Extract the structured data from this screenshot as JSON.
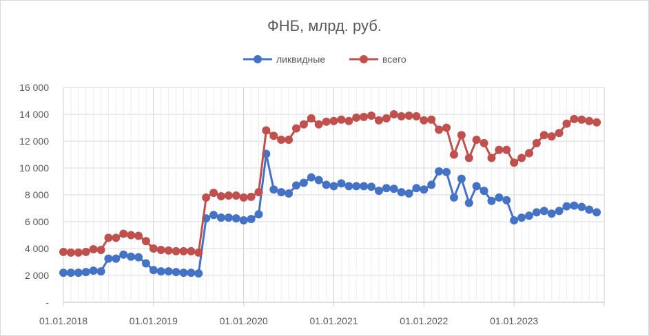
{
  "chart_data": {
    "type": "line",
    "title": "ФНБ, млрд. руб.",
    "xlabel": "",
    "ylabel": "",
    "ylim": [
      0,
      16000
    ],
    "yticks": [
      0,
      2000,
      4000,
      6000,
      8000,
      10000,
      12000,
      14000,
      16000
    ],
    "ytick_labels": [
      "-",
      "2 000",
      "4 000",
      "6 000",
      "8 000",
      "10 000",
      "12 000",
      "14 000",
      "16 000"
    ],
    "xlim": [
      "2018-01-01",
      "2023-12-01"
    ],
    "xtick_labels": [
      "01.01.2018",
      "01.01.2019",
      "01.01.2020",
      "01.01.2021",
      "01.01.2022",
      "01.01.2023"
    ],
    "grid": true,
    "legend": "top-center",
    "x": [
      "2018-01-01",
      "2018-02-01",
      "2018-03-01",
      "2018-04-01",
      "2018-05-01",
      "2018-06-01",
      "2018-07-01",
      "2018-08-01",
      "2018-09-01",
      "2018-10-01",
      "2018-11-01",
      "2018-12-01",
      "2019-01-01",
      "2019-02-01",
      "2019-03-01",
      "2019-04-01",
      "2019-05-01",
      "2019-06-01",
      "2019-07-01",
      "2019-08-01",
      "2019-09-01",
      "2019-10-01",
      "2019-11-01",
      "2019-12-01",
      "2020-01-01",
      "2020-02-01",
      "2020-03-01",
      "2020-04-01",
      "2020-05-01",
      "2020-06-01",
      "2020-07-01",
      "2020-08-01",
      "2020-09-01",
      "2020-10-01",
      "2020-11-01",
      "2020-12-01",
      "2021-01-01",
      "2021-02-01",
      "2021-03-01",
      "2021-04-01",
      "2021-05-01",
      "2021-06-01",
      "2021-07-01",
      "2021-08-01",
      "2021-09-01",
      "2021-10-01",
      "2021-11-01",
      "2021-12-01",
      "2022-01-01",
      "2022-02-01",
      "2022-03-01",
      "2022-04-01",
      "2022-05-01",
      "2022-06-01",
      "2022-07-01",
      "2022-08-01",
      "2022-09-01",
      "2022-10-01",
      "2022-11-01",
      "2022-12-01",
      "2023-01-01",
      "2023-02-01",
      "2023-03-01",
      "2023-04-01",
      "2023-05-01",
      "2023-06-01",
      "2023-07-01",
      "2023-08-01",
      "2023-09-01",
      "2023-10-01",
      "2023-11-01",
      "2023-12-01"
    ],
    "series": [
      {
        "name": "ликвидные",
        "color": "#4472c4",
        "values": [
          2200,
          2200,
          2200,
          2250,
          2350,
          2300,
          3250,
          3250,
          3550,
          3400,
          3350,
          2900,
          2400,
          2300,
          2300,
          2250,
          2200,
          2200,
          2150,
          6250,
          6500,
          6300,
          6300,
          6250,
          6100,
          6200,
          6550,
          11050,
          8400,
          8200,
          8100,
          8700,
          8900,
          9300,
          9100,
          8750,
          8650,
          8850,
          8650,
          8650,
          8650,
          8600,
          8300,
          8500,
          8450,
          8200,
          8100,
          8500,
          8400,
          8750,
          9750,
          9700,
          7800,
          9200,
          7400,
          8650,
          8300,
          7550,
          7800,
          7600,
          6100,
          6300,
          6450,
          6700,
          6800,
          6600,
          6800,
          7150,
          7200,
          7100,
          6900,
          6700
        ]
      },
      {
        "name": "всего",
        "color": "#c0504d",
        "values": [
          3750,
          3700,
          3700,
          3750,
          3950,
          3900,
          4800,
          4800,
          5100,
          5000,
          4950,
          4550,
          4000,
          3900,
          3850,
          3800,
          3800,
          3800,
          3700,
          7800,
          8150,
          7900,
          7950,
          7950,
          7800,
          7850,
          8200,
          12800,
          12400,
          12100,
          12100,
          12950,
          13250,
          13700,
          13250,
          13450,
          13500,
          13600,
          13500,
          13750,
          13800,
          13900,
          13550,
          13700,
          14000,
          13850,
          13900,
          13850,
          13550,
          13600,
          12850,
          13000,
          11000,
          12450,
          10750,
          12100,
          11850,
          10750,
          11350,
          11350,
          10400,
          10750,
          11100,
          11850,
          12450,
          12350,
          12600,
          13300,
          13650,
          13600,
          13500,
          13400
        ]
      }
    ]
  }
}
